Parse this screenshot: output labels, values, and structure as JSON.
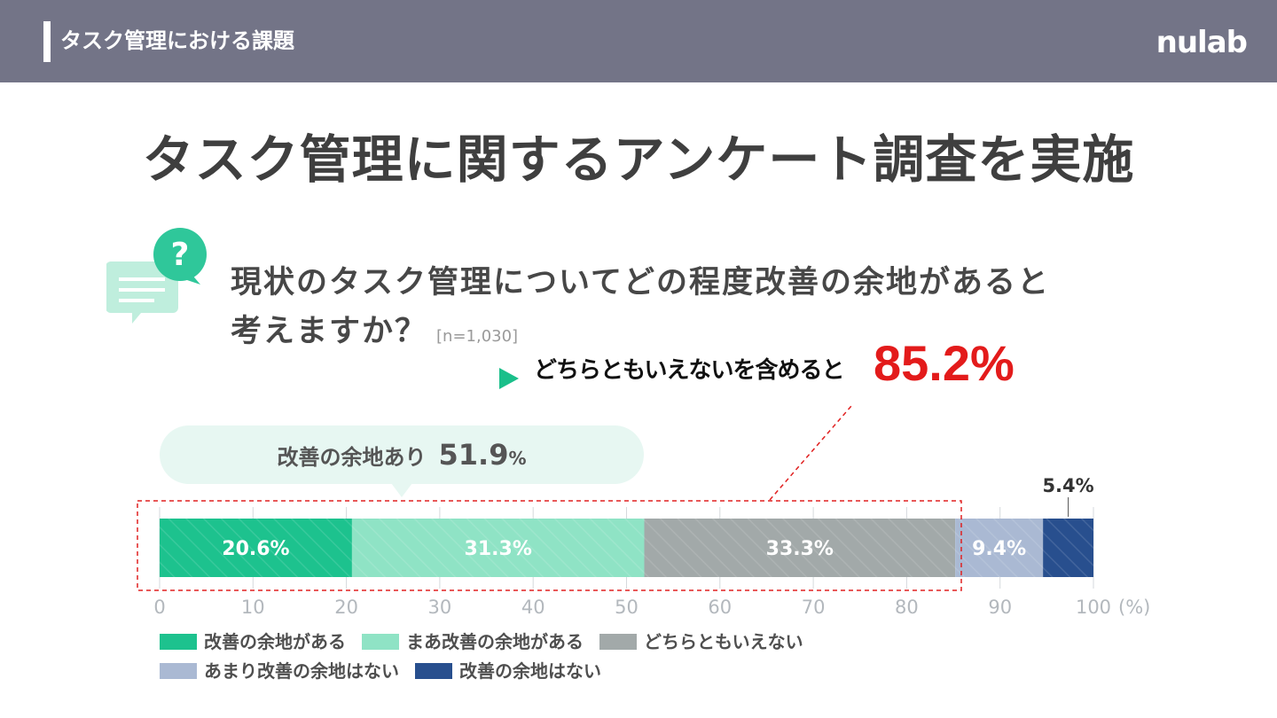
{
  "header": {
    "section_title": "タスク管理における課題",
    "logo": "nulab"
  },
  "main_title": "タスク管理に関するアンケート調査を実施",
  "question": {
    "line1": "現状のタスク管理についてどの程度改善の余地があると",
    "line2": "考えますか？",
    "sample": "[n=1,030]"
  },
  "callout": {
    "text": "どちらともいえないを含めると",
    "value": "85.2%"
  },
  "bubble": {
    "label": "改善の余地あり",
    "value": "51.9",
    "unit": "%"
  },
  "icons": {
    "question": "question-chat-icon",
    "arrow": "triangle-arrow-icon"
  },
  "chart_data": {
    "type": "bar",
    "orientation": "horizontal-stacked-100",
    "categories": [
      "現状のタスク管理についてどの程度改善の余地があると考えますか？"
    ],
    "series": [
      {
        "name": "改善の余地がある",
        "values": [
          20.6
        ],
        "label": "20.6%",
        "color": "#1dc28e"
      },
      {
        "name": "まあ改善の余地がある",
        "values": [
          31.3
        ],
        "label": "31.3%",
        "color": "#8fe3c5"
      },
      {
        "name": "どちらともいえない",
        "values": [
          33.3
        ],
        "label": "33.3%",
        "color": "#a2a9a9"
      },
      {
        "name": "あまり改善の余地はない",
        "values": [
          9.4
        ],
        "label": "9.4%",
        "color": "#aab9d3"
      },
      {
        "name": "改善の余地はない",
        "values": [
          5.4
        ],
        "label": "5.4%",
        "color": "#284f8e"
      }
    ],
    "xlim": [
      0,
      100
    ],
    "xticks": [
      "0",
      "10",
      "20",
      "30",
      "40",
      "50",
      "60",
      "70",
      "80",
      "90",
      "100"
    ],
    "xunit": "(%)",
    "grid": true,
    "legend_position": "bottom"
  }
}
